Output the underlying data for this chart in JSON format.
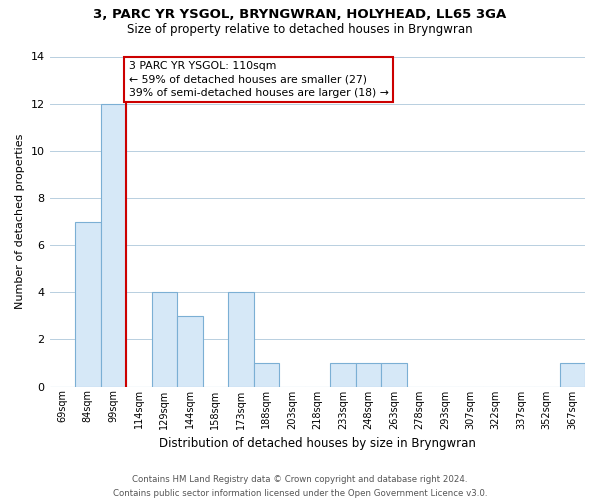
{
  "title": "3, PARC YR YSGOL, BRYNGWRAN, HOLYHEAD, LL65 3GA",
  "subtitle": "Size of property relative to detached houses in Bryngwran",
  "xlabel": "Distribution of detached houses by size in Bryngwran",
  "ylabel": "Number of detached properties",
  "bar_labels": [
    "69sqm",
    "84sqm",
    "99sqm",
    "114sqm",
    "129sqm",
    "144sqm",
    "158sqm",
    "173sqm",
    "188sqm",
    "203sqm",
    "218sqm",
    "233sqm",
    "248sqm",
    "263sqm",
    "278sqm",
    "293sqm",
    "307sqm",
    "322sqm",
    "337sqm",
    "352sqm",
    "367sqm"
  ],
  "bar_values": [
    0,
    7,
    12,
    0,
    4,
    3,
    0,
    4,
    1,
    0,
    0,
    1,
    1,
    1,
    0,
    0,
    0,
    0,
    0,
    0,
    1
  ],
  "bar_fill_color": "#d6e8f7",
  "bar_edge_color": "#7bafd4",
  "property_line_x": 2.5,
  "annotation_text": "3 PARC YR YSGOL: 110sqm\n← 59% of detached houses are smaller (27)\n39% of semi-detached houses are larger (18) →",
  "annotation_box_color": "#ffffff",
  "annotation_box_edge": "#cc0000",
  "vline_color": "#cc0000",
  "ylim": [
    0,
    14
  ],
  "yticks": [
    0,
    2,
    4,
    6,
    8,
    10,
    12,
    14
  ],
  "footer_line1": "Contains HM Land Registry data © Crown copyright and database right 2024.",
  "footer_line2": "Contains public sector information licensed under the Open Government Licence v3.0.",
  "bg_color": "#ffffff",
  "grid_color": "#b8cfe0"
}
